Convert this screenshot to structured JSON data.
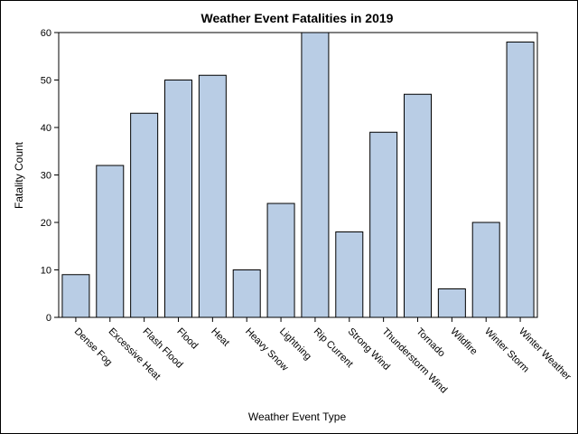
{
  "chart_data": {
    "type": "bar",
    "title": "Weather Event Fatalities in 2019",
    "xlabel": "Weather Event Type",
    "ylabel": "Fatality Count",
    "categories": [
      "Dense Fog",
      "Excessive Heat",
      "Flash Flood",
      "Flood",
      "Heat",
      "Heavy Snow",
      "Lightning",
      "Rip Current",
      "Strong Wind",
      "Thunderstorm Wind",
      "Tornado",
      "Wildfire",
      "Winter Storm",
      "Winter Weather"
    ],
    "values": [
      9,
      32,
      43,
      50,
      51,
      10,
      24,
      60,
      18,
      39,
      47,
      6,
      20,
      58
    ],
    "ylim": [
      0,
      60
    ],
    "yticks": [
      0,
      10,
      20,
      30,
      40,
      50,
      60
    ],
    "grid": false,
    "colors": {
      "bar_fill": "#b9cde5",
      "bar_stroke": "#000000"
    }
  }
}
